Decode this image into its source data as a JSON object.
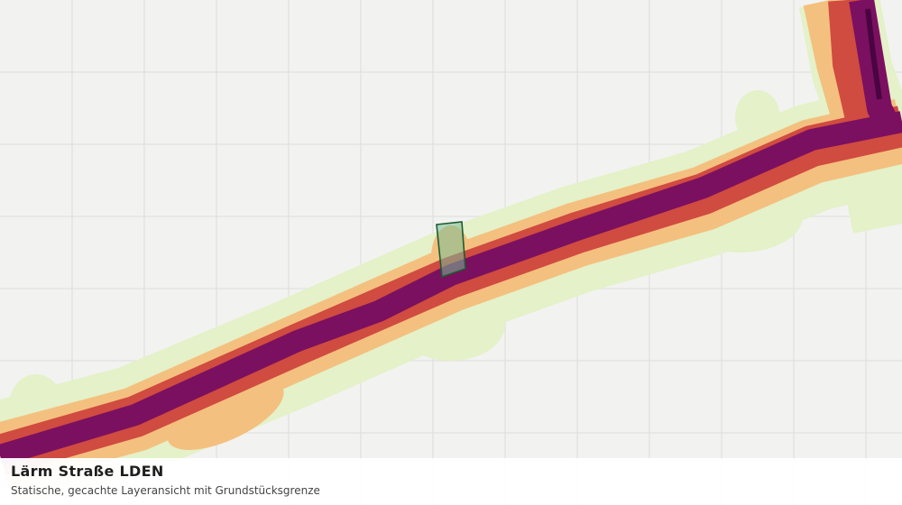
{
  "legend_panel": {
    "title": "Lärm Straße LDEN",
    "subtitle": "Statische, gecachte Layeransicht mit Grundstücksgrenze"
  }
}
